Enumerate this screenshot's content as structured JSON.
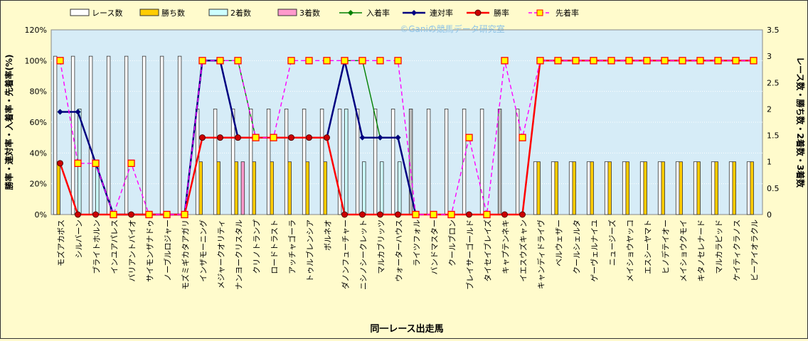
{
  "watermark": "©Ganiの競馬データ研究室",
  "chart_data": {
    "type": "bar",
    "xlabel": "同一レース出走馬",
    "ylabel_left": "勝率・連対率・入着率・先着率(%)",
    "ylabel_right": "レース数・勝ち数・2着数・3着数",
    "ylim_left": [
      0,
      120
    ],
    "ylim_right": [
      0,
      3.5
    ],
    "yticks_left": [
      "0%",
      "20%",
      "40%",
      "60%",
      "80%",
      "100%",
      "120%"
    ],
    "yticks_right": [
      "0",
      "0.5",
      "1",
      "1.5",
      "2",
      "2.5",
      "3",
      "3.5"
    ],
    "legend_position": "top",
    "categories": [
      "モズアカボス",
      "シルバーン",
      "ブライトホルン",
      "インユアパレス",
      "バリアントバイオ",
      "サイモンザナドゥ",
      "ノーブルロジャー",
      "モズミギカタアガリ",
      "インザモーニング",
      "メジャークオリティ",
      "ナンヨークリスタル",
      "クリノトランプ",
      "ロードトラスト",
      "アッチャゴーラ",
      "トゥルブレンシア",
      "ボルネオ",
      "ダノンフューチャー",
      "ニシノシークレット",
      "マルカブリッツ",
      "ウォーターハウス",
      "ライツフォル",
      "バンドマスター",
      "クールブロン",
      "ブレイサーゴールド",
      "タイセイブレイズ",
      "キャプテンネキ",
      "イエスウズキャン",
      "キャンディドライヴ",
      "ベルウェザー",
      "クールシェルタ",
      "ゲーヴェルナイユ",
      "ニュージーズ",
      "メイショウヤッコ",
      "エスシーヤマト",
      "ヒノデテイオー",
      "メイショウクモイ",
      "キタノセレナード",
      "マルカラピッド",
      "ケイティクラノス",
      "ビーアイオラクル"
    ],
    "series": [
      {
        "name": "レース数",
        "axis": "right",
        "kind": "bar",
        "color": "#ffffff",
        "highlight": [
          20,
          25
        ],
        "values": [
          3,
          3,
          3,
          3,
          3,
          3,
          3,
          3,
          2,
          2,
          2,
          2,
          2,
          2,
          2,
          2,
          2,
          2,
          2,
          2,
          2,
          2,
          2,
          2,
          2,
          2,
          2,
          1,
          1,
          1,
          1,
          1,
          1,
          1,
          1,
          1,
          1,
          1,
          1,
          1
        ]
      },
      {
        "name": "勝ち数",
        "axis": "right",
        "kind": "bar",
        "color": "#ffcc00",
        "values": [
          1,
          0,
          0,
          0,
          0,
          0,
          0,
          0,
          1,
          1,
          1,
          1,
          1,
          1,
          1,
          1,
          0,
          0,
          0,
          0,
          0,
          0,
          0,
          0,
          0,
          0,
          0,
          1,
          1,
          1,
          1,
          1,
          1,
          1,
          1,
          1,
          1,
          1,
          1,
          1
        ]
      },
      {
        "name": "2着数",
        "axis": "right",
        "kind": "bar",
        "color": "#ccffff",
        "values": [
          0,
          2,
          1,
          0,
          0,
          0,
          0,
          0,
          0,
          0,
          0,
          0,
          0,
          0,
          0,
          0,
          2,
          1,
          1,
          1,
          0,
          0,
          0,
          0,
          0,
          0,
          0,
          0,
          0,
          0,
          0,
          0,
          0,
          0,
          0,
          0,
          0,
          0,
          0,
          0
        ]
      },
      {
        "name": "3着数",
        "axis": "right",
        "kind": "bar",
        "color": "#ff99cc",
        "values": [
          0,
          0,
          0,
          0,
          0,
          0,
          0,
          0,
          0,
          0,
          1,
          0,
          0,
          0,
          0,
          0,
          0,
          0,
          0,
          0,
          0,
          0,
          0,
          0,
          0,
          0,
          0,
          0,
          0,
          0,
          0,
          0,
          0,
          0,
          0,
          0,
          0,
          0,
          0,
          0
        ]
      },
      {
        "name": "入着率",
        "axis": "left",
        "kind": "line",
        "color": "#008000",
        "marker": "diamond",
        "values": [
          66.7,
          66.7,
          33.3,
          0,
          0,
          0,
          0,
          0,
          100,
          100,
          100,
          50,
          50,
          50,
          50,
          50,
          100,
          100,
          50,
          50,
          0,
          null,
          null,
          null,
          null,
          null,
          null,
          null,
          null,
          null,
          null,
          null,
          null,
          null,
          null,
          null,
          null,
          null,
          null,
          null
        ]
      },
      {
        "name": "連対率",
        "axis": "left",
        "kind": "line",
        "color": "#000080",
        "marker": "diamond",
        "values": [
          66.7,
          66.7,
          33.3,
          0,
          0,
          0,
          0,
          0,
          100,
          100,
          50,
          50,
          50,
          50,
          50,
          50,
          100,
          50,
          50,
          50,
          0,
          null,
          null,
          null,
          null,
          null,
          null,
          null,
          null,
          null,
          null,
          null,
          null,
          null,
          null,
          null,
          null,
          null,
          null,
          null
        ]
      },
      {
        "name": "勝率",
        "axis": "left",
        "kind": "line",
        "color": "#ff0000",
        "marker": "circle",
        "values": [
          33.3,
          0,
          0,
          0,
          0,
          0,
          0,
          0,
          50,
          50,
          50,
          50,
          50,
          50,
          50,
          50,
          0,
          0,
          0,
          0,
          0,
          0,
          0,
          0,
          0,
          0,
          0,
          100,
          100,
          100,
          100,
          100,
          100,
          100,
          100,
          100,
          100,
          100,
          100,
          100
        ]
      },
      {
        "name": "先着率",
        "axis": "left",
        "kind": "line",
        "color": "#ff00ff",
        "marker": "square",
        "dashed": true,
        "values": [
          100,
          33.3,
          33.3,
          0,
          33.3,
          0,
          0,
          0,
          100,
          100,
          100,
          50,
          50,
          100,
          100,
          100,
          100,
          100,
          100,
          100,
          0,
          0,
          0,
          50,
          0,
          100,
          50,
          100,
          100,
          100,
          100,
          100,
          100,
          100,
          100,
          100,
          100,
          100,
          100,
          100
        ]
      }
    ]
  }
}
